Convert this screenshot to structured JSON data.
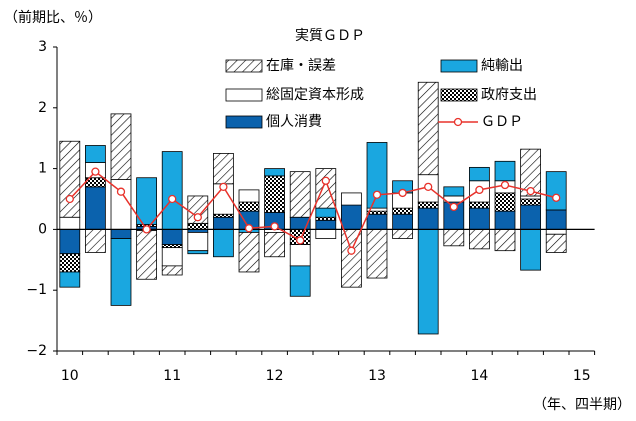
{
  "chart_data": {
    "type": "bar",
    "title": "実質ＧＤＰ",
    "y_label": "（前期比、％）",
    "x_label": "（年、四半期）",
    "categories": [
      "10",
      null,
      null,
      null,
      "11",
      null,
      null,
      null,
      "12",
      null,
      null,
      null,
      "13",
      null,
      null,
      null,
      "14",
      null,
      null,
      null,
      "15"
    ],
    "series": [
      {
        "name": "個人消費",
        "color": "#0b62ad",
        "values": [
          -0.4,
          0.7,
          -0.15,
          0.05,
          -0.25,
          -0.05,
          0.2,
          0.3,
          0.28,
          0.2,
          0.15,
          0.4,
          0.25,
          0.25,
          0.35,
          0.45,
          0.35,
          0.3,
          0.4,
          0.32,
          null
        ]
      },
      {
        "name": "政府支出",
        "color": "checker",
        "values": [
          -0.3,
          0.15,
          0,
          0.03,
          -0.05,
          0.1,
          0.05,
          0.15,
          0.6,
          -0.25,
          0.05,
          0,
          0.05,
          0.1,
          0.1,
          0,
          0.1,
          0.3,
          0.1,
          0,
          null
        ]
      },
      {
        "name": "総固定資本形成",
        "color": "#ffffff",
        "values": [
          0.2,
          0.25,
          0.82,
          -0.02,
          -0.3,
          -0.3,
          0.5,
          0.2,
          -0.05,
          -0.35,
          -0.15,
          0.2,
          0.05,
          0.25,
          0.45,
          0.1,
          0.35,
          0.2,
          0.05,
          -0.08,
          null
        ]
      },
      {
        "name": "純輸出",
        "color": "#1aa7e0",
        "values": [
          -0.25,
          0.28,
          -1.1,
          0.77,
          1.28,
          -0.05,
          -0.45,
          -0.05,
          0.12,
          -0.5,
          0.15,
          0,
          1.08,
          0.2,
          -1.72,
          0.15,
          0.22,
          0.32,
          -0.67,
          0.63,
          null
        ]
      },
      {
        "name": "在庫・誤差",
        "color": "hatch",
        "values": [
          1.25,
          -0.38,
          1.08,
          -0.8,
          -0.15,
          0.45,
          0.5,
          -0.65,
          -0.4,
          0.75,
          0.65,
          -0.95,
          -0.8,
          -0.15,
          1.52,
          -0.27,
          -0.32,
          -0.35,
          0.77,
          -0.3,
          null
        ]
      },
      {
        "name": "ＧＤＰ",
        "type": "line",
        "color": "#e8322b",
        "values": [
          0.5,
          0.95,
          0.62,
          0.0,
          0.5,
          0.2,
          0.7,
          0.02,
          0.05,
          -0.18,
          0.8,
          -0.35,
          0.57,
          0.6,
          0.7,
          0.37,
          0.65,
          0.73,
          0.63,
          0.52,
          null
        ]
      }
    ],
    "ylim": [
      -2,
      3
    ],
    "yticks": [
      {
        "value": -2,
        "label": "−2"
      },
      {
        "value": -1,
        "label": "−1"
      },
      0,
      1,
      2,
      3
    ],
    "grid": false
  }
}
